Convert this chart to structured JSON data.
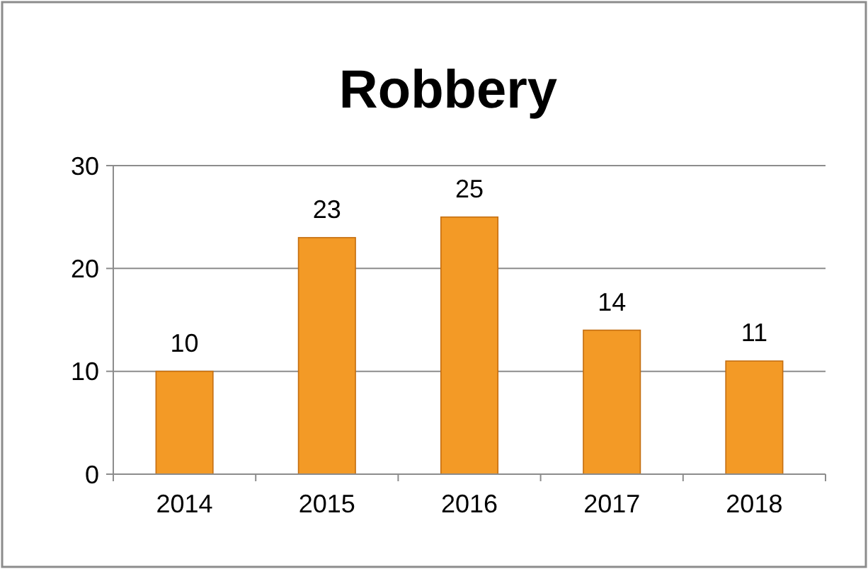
{
  "chart_data": {
    "type": "bar",
    "title": "Robbery",
    "categories": [
      "2014",
      "2015",
      "2016",
      "2017",
      "2018"
    ],
    "values": [
      10,
      23,
      25,
      14,
      11
    ],
    "color": "#f39a26",
    "ylim": [
      0,
      30
    ],
    "yticks": [
      0,
      10,
      20,
      30
    ],
    "grid": "y",
    "data_labels": true
  }
}
